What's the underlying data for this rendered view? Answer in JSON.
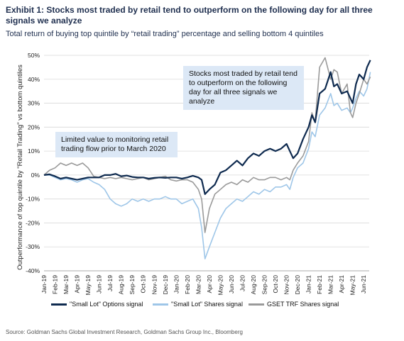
{
  "header": {
    "title": "Exhibit 1: Stocks most traded by retail tend to outperform on the following day for all three signals we analyze",
    "subtitle": "Total return of buying top quintile by “retail trading” percentage and selling bottom 4 quintiles",
    "source": "Source: Goldman Sachs Global Investment Research, Goldman Sachs Group Inc., Bloomberg"
  },
  "annotations": {
    "right": "Stocks most traded by retail tend to outperform on the following day for all three signals we analyze",
    "left": "Limited value to monitoring retail trading flow prior to March 2020"
  },
  "chart_data": {
    "type": "line",
    "ylabel": "Outperformance of top quintile by \"Retail Trading\" vs bottom quintiles",
    "ylim": [
      -0.4,
      0.5
    ],
    "y_ticks": [
      0.5,
      0.4,
      0.3,
      0.2,
      0.1,
      0.0,
      -0.1,
      -0.2,
      -0.3,
      -0.4
    ],
    "y_tick_labels": [
      "50%",
      "40%",
      "30%",
      "20%",
      "10%",
      "0%",
      "-10%",
      "-20%",
      "-30%",
      "-40%"
    ],
    "x_tick_labels": [
      "Jan-19",
      "Feb-19",
      "Mar-19",
      "Apr-19",
      "May-19",
      "Jun-19",
      "Jul-19",
      "Aug-19",
      "Sep-19",
      "Oct-19",
      "Nov-19",
      "Dec-19",
      "Jan-20",
      "Feb-20",
      "Mar-20",
      "Apr-20",
      "May-20",
      "Jun-20",
      "Jul-20",
      "Aug-20",
      "Sep-20",
      "Oct-20",
      "Nov-20",
      "Dec-20",
      "Jan-21",
      "Feb-21",
      "Mar-21",
      "Apr-21",
      "May-21",
      "Jun-21"
    ],
    "x_unit": "months since Jan-19",
    "grid": "horizontal",
    "legend_position": "bottom",
    "series": [
      {
        "name": "\"Small Lot\" Options signal",
        "color": "#0e2a4f",
        "x": [
          0,
          0.5,
          1,
          1.5,
          2,
          2.5,
          3,
          3.5,
          4,
          4.5,
          5,
          5.5,
          6,
          6.5,
          7,
          7.5,
          8,
          8.5,
          9,
          9.5,
          10,
          10.5,
          11,
          11.5,
          12,
          12.5,
          13,
          13.5,
          14,
          14.3,
          14.6,
          15,
          15.5,
          16,
          16.5,
          17,
          17.5,
          18,
          18.5,
          19,
          19.5,
          20,
          20.5,
          21,
          21.5,
          22,
          22.3,
          22.6,
          23,
          23.5,
          24,
          24.3,
          24.6,
          25,
          25.5,
          26,
          26.3,
          26.6,
          27,
          27.5,
          27.8,
          28,
          28.3,
          28.6,
          29,
          29.3,
          29.6
        ],
        "values": [
          0.0,
          0.003,
          -0.005,
          -0.015,
          -0.01,
          -0.015,
          -0.02,
          -0.015,
          -0.01,
          -0.01,
          -0.01,
          0.0,
          0.0,
          0.005,
          -0.005,
          -0.002,
          -0.008,
          -0.01,
          -0.01,
          -0.015,
          -0.012,
          -0.01,
          -0.012,
          -0.01,
          -0.01,
          -0.015,
          -0.01,
          -0.003,
          -0.01,
          -0.02,
          -0.08,
          -0.06,
          -0.04,
          0.01,
          0.02,
          0.04,
          0.06,
          0.04,
          0.07,
          0.09,
          0.08,
          0.1,
          0.11,
          0.1,
          0.11,
          0.13,
          0.1,
          0.07,
          0.09,
          0.15,
          0.2,
          0.25,
          0.22,
          0.34,
          0.36,
          0.43,
          0.37,
          0.38,
          0.34,
          0.35,
          0.32,
          0.3,
          0.38,
          0.42,
          0.4,
          0.45,
          0.48
        ]
      },
      {
        "name": "\"Small Lot\" Shares signal",
        "color": "#9ec6e8",
        "x": [
          0,
          0.5,
          1,
          1.5,
          2,
          2.5,
          3,
          3.5,
          4,
          4.5,
          5,
          5.5,
          6,
          6.5,
          7,
          7.5,
          8,
          8.5,
          9,
          9.5,
          10,
          10.5,
          11,
          11.5,
          12,
          12.5,
          13,
          13.5,
          14,
          14.3,
          14.6,
          15,
          15.5,
          16,
          16.5,
          17,
          17.5,
          18,
          18.5,
          19,
          19.5,
          20,
          20.5,
          21,
          21.5,
          22,
          22.3,
          22.6,
          23,
          23.5,
          24,
          24.3,
          24.6,
          25,
          25.5,
          26,
          26.3,
          26.6,
          27,
          27.5,
          27.8,
          28,
          28.3,
          28.6,
          29,
          29.3,
          29.6
        ],
        "values": [
          0.0,
          0.0,
          -0.01,
          -0.02,
          -0.015,
          -0.02,
          -0.03,
          -0.02,
          -0.015,
          -0.03,
          -0.04,
          -0.06,
          -0.1,
          -0.12,
          -0.13,
          -0.12,
          -0.1,
          -0.11,
          -0.1,
          -0.11,
          -0.1,
          -0.1,
          -0.09,
          -0.1,
          -0.1,
          -0.12,
          -0.11,
          -0.1,
          -0.14,
          -0.22,
          -0.35,
          -0.3,
          -0.24,
          -0.18,
          -0.14,
          -0.12,
          -0.1,
          -0.11,
          -0.09,
          -0.07,
          -0.08,
          -0.06,
          -0.07,
          -0.05,
          -0.05,
          -0.04,
          -0.06,
          -0.01,
          0.03,
          0.05,
          0.11,
          0.18,
          0.16,
          0.25,
          0.28,
          0.34,
          0.29,
          0.3,
          0.27,
          0.28,
          0.26,
          0.28,
          0.32,
          0.35,
          0.33,
          0.36,
          0.43
        ]
      },
      {
        "name": "GSET TRF Shares signal",
        "color": "#9a9a9a",
        "x": [
          0,
          0.5,
          1,
          1.5,
          2,
          2.5,
          3,
          3.5,
          4,
          4.5,
          5,
          5.5,
          6,
          6.5,
          7,
          7.5,
          8,
          8.5,
          9,
          9.5,
          10,
          10.5,
          11,
          11.5,
          12,
          12.5,
          13,
          13.5,
          14,
          14.3,
          14.6,
          15,
          15.5,
          16,
          16.5,
          17,
          17.5,
          18,
          18.5,
          19,
          19.5,
          20,
          20.5,
          21,
          21.5,
          22,
          22.3,
          22.6,
          23,
          23.5,
          24,
          24.3,
          24.6,
          25,
          25.5,
          26,
          26.3,
          26.6,
          27,
          27.5,
          27.8,
          28,
          28.3,
          28.6,
          29,
          29.3,
          29.6
        ],
        "values": [
          0.0,
          0.02,
          0.03,
          0.05,
          0.04,
          0.05,
          0.04,
          0.05,
          0.03,
          -0.005,
          -0.01,
          -0.015,
          -0.01,
          -0.015,
          -0.01,
          -0.015,
          -0.02,
          -0.015,
          -0.01,
          -0.02,
          -0.015,
          -0.01,
          -0.005,
          -0.02,
          -0.025,
          -0.02,
          -0.02,
          -0.03,
          -0.06,
          -0.1,
          -0.24,
          -0.14,
          -0.08,
          -0.06,
          -0.04,
          -0.03,
          -0.04,
          -0.02,
          -0.03,
          -0.01,
          -0.02,
          -0.02,
          -0.01,
          -0.01,
          -0.02,
          -0.01,
          -0.02,
          0.02,
          0.05,
          0.08,
          0.14,
          0.26,
          0.22,
          0.45,
          0.49,
          0.4,
          0.44,
          0.43,
          0.34,
          0.38,
          0.26,
          0.24,
          0.3,
          0.34,
          0.4,
          0.38,
          0.41
        ]
      }
    ]
  }
}
